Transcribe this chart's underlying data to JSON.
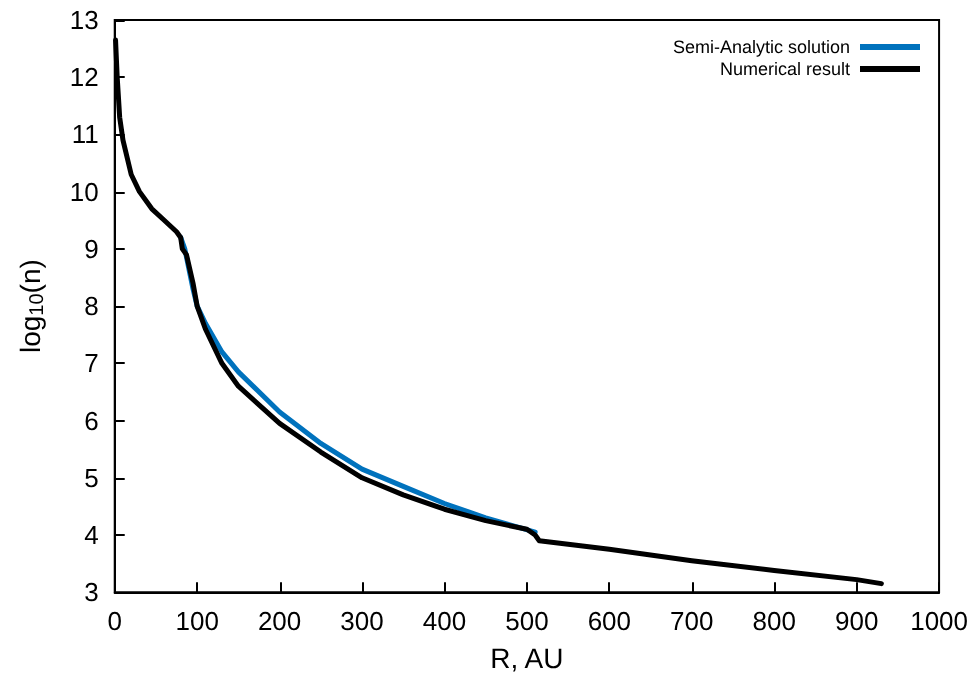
{
  "chart_data": {
    "type": "line",
    "xlabel": "R, AU",
    "ylabel": "log$_{10}$(n)",
    "xlim": [
      0,
      1000
    ],
    "ylim": [
      3,
      13
    ],
    "xticks": [
      0,
      100,
      200,
      300,
      400,
      500,
      600,
      700,
      800,
      900,
      1000
    ],
    "yticks": [
      3,
      4,
      5,
      6,
      7,
      8,
      9,
      10,
      11,
      12,
      13
    ],
    "grid": false,
    "legend": "top right",
    "marker": "none",
    "line_style": "solid",
    "series": [
      {
        "name": "Semi-Analytic solution",
        "color": "#0072bd",
        "x": [
          80,
          85,
          95,
          100,
          110,
          130,
          150,
          200,
          250,
          300,
          350,
          400,
          450,
          510
        ],
        "values": [
          9.2,
          9.0,
          8.3,
          8.0,
          7.7,
          7.2,
          6.85,
          6.15,
          5.6,
          5.15,
          4.85,
          4.55,
          4.3,
          4.05
        ]
      },
      {
        "name": "Numerical result",
        "color": "#000000",
        "x": [
          1,
          3,
          6,
          10,
          20,
          30,
          45,
          60,
          75,
          80,
          82,
          87,
          95,
          100,
          110,
          130,
          150,
          200,
          250,
          300,
          350,
          400,
          450,
          500,
          510,
          515,
          600,
          700,
          800,
          900,
          930
        ],
        "values": [
          12.65,
          12.0,
          11.3,
          10.9,
          10.3,
          10.0,
          9.7,
          9.5,
          9.3,
          9.2,
          9.0,
          8.9,
          8.4,
          8.0,
          7.6,
          7.0,
          6.6,
          5.95,
          5.45,
          5.0,
          4.7,
          4.45,
          4.25,
          4.1,
          4.0,
          3.9,
          3.75,
          3.55,
          3.38,
          3.22,
          3.15
        ]
      }
    ]
  }
}
